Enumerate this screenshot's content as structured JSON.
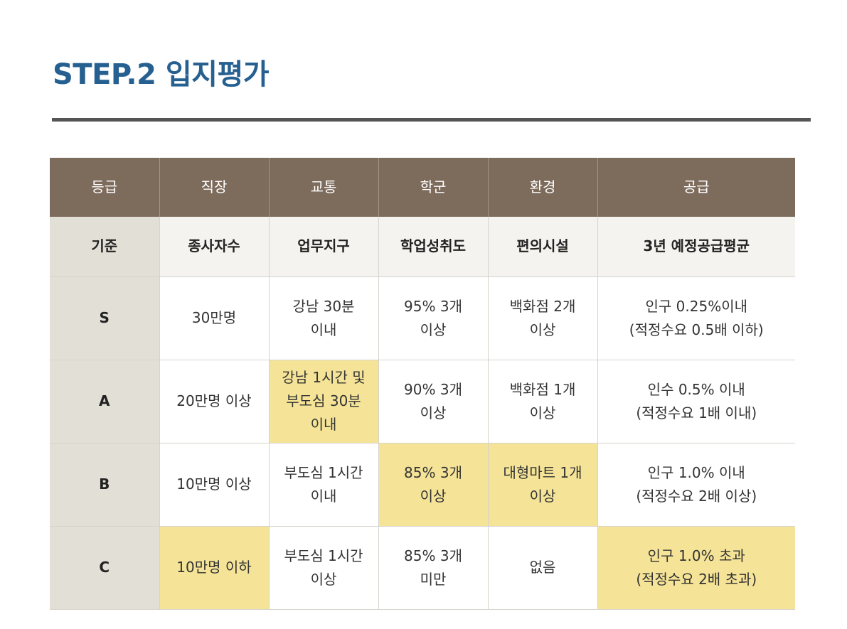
{
  "page": {
    "title": "STEP.2 입지평가"
  },
  "colors": {
    "title": "#266090",
    "header_bg": "#7d6b5c",
    "highlight": "#f5e497",
    "grade_column_bg": "#e2dfd6",
    "criteria_row_bg": "#f4f3ef",
    "rule": "#555555"
  },
  "table": {
    "headers": [
      "등급",
      "직장",
      "교통",
      "학군",
      "환경",
      "공급"
    ],
    "criteria": [
      "기준",
      "종사자수",
      "업무지구",
      "학업성취도",
      "편의시설",
      "3년 예정공급평균"
    ],
    "rows": [
      {
        "grade": "S",
        "cells": [
          {
            "lines": [
              "30만명"
            ],
            "highlighted": false
          },
          {
            "lines": [
              "강남 30분",
              "이내"
            ],
            "highlighted": false
          },
          {
            "lines": [
              "95% 3개",
              "이상"
            ],
            "highlighted": false
          },
          {
            "lines": [
              "백화점 2개",
              "이상"
            ],
            "highlighted": false
          },
          {
            "lines": [
              "인구 0.25%이내",
              "(적정수요 0.5배 이하)"
            ],
            "highlighted": false
          }
        ]
      },
      {
        "grade": "A",
        "cells": [
          {
            "lines": [
              "20만명 이상"
            ],
            "highlighted": false
          },
          {
            "lines": [
              "강남 1시간 및",
              "부도심 30분",
              "이내"
            ],
            "highlighted": true
          },
          {
            "lines": [
              "90% 3개",
              "이상"
            ],
            "highlighted": false
          },
          {
            "lines": [
              "백화점 1개",
              "이상"
            ],
            "highlighted": false
          },
          {
            "lines": [
              "인수 0.5% 이내",
              "(적정수요 1배 이내)"
            ],
            "highlighted": false
          }
        ]
      },
      {
        "grade": "B",
        "cells": [
          {
            "lines": [
              "10만명 이상"
            ],
            "highlighted": false
          },
          {
            "lines": [
              "부도심 1시간",
              "이내"
            ],
            "highlighted": false
          },
          {
            "lines": [
              "85% 3개",
              "이상"
            ],
            "highlighted": true
          },
          {
            "lines": [
              "대형마트 1개",
              "이상"
            ],
            "highlighted": true
          },
          {
            "lines": [
              "인구 1.0% 이내",
              "(적정수요 2배 이상)"
            ],
            "highlighted": false
          }
        ]
      },
      {
        "grade": "C",
        "cells": [
          {
            "lines": [
              "10만명 이하"
            ],
            "highlighted": true
          },
          {
            "lines": [
              "부도심 1시간",
              "이상"
            ],
            "highlighted": false
          },
          {
            "lines": [
              "85% 3개",
              "미만"
            ],
            "highlighted": false
          },
          {
            "lines": [
              "없음"
            ],
            "highlighted": false
          },
          {
            "lines": [
              "인구 1.0% 초과",
              "(적정수요 2배 초과)"
            ],
            "highlighted": true
          }
        ]
      }
    ]
  }
}
